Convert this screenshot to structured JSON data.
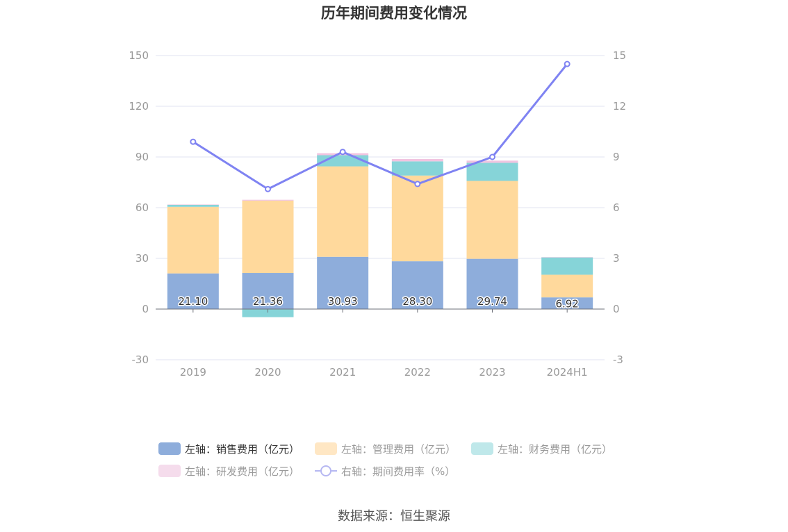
{
  "chart_data": {
    "type": "bar",
    "title": "历年期间费用变化情况",
    "categories": [
      "2019",
      "2020",
      "2021",
      "2022",
      "2023",
      "2024H1"
    ],
    "y_left": {
      "ticks": [
        -30,
        0,
        30,
        60,
        90,
        120,
        150
      ],
      "range": [
        -30,
        150
      ]
    },
    "y_right": {
      "ticks": [
        -3,
        0,
        3,
        6,
        9,
        12,
        15
      ],
      "range": [
        -3,
        15
      ]
    },
    "grid": true,
    "legend_position": "bottom",
    "series": [
      {
        "name": "左轴：销售费用（亿元）",
        "axis": "left",
        "kind": "bar",
        "values": [
          21.1,
          21.36,
          30.93,
          28.3,
          29.74,
          6.92
        ],
        "labels": [
          "21.10",
          "21.36",
          "30.93",
          "28.30",
          "29.74",
          "6.92"
        ],
        "color": "#8eaddb",
        "legend_color": "#8eaddb"
      },
      {
        "name": "左轴：管理费用（亿元）",
        "axis": "left",
        "kind": "bar",
        "values": [
          39.4,
          42.8,
          53.5,
          50.7,
          46.1,
          13.4
        ],
        "color": "#ffd99c",
        "legend_color": "#ffe7c4"
      },
      {
        "name": "左轴：财务费用（亿元）",
        "axis": "left",
        "kind": "bar",
        "values": [
          1.2,
          -4.8,
          6.6,
          8.4,
          10.7,
          10.3
        ],
        "color": "#86d4d8",
        "legend_color": "#bfe8ea"
      },
      {
        "name": "左轴：研发费用（亿元）",
        "axis": "left",
        "kind": "bar",
        "values": [
          0.2,
          0.5,
          1.2,
          1.4,
          1.3,
          0.1
        ],
        "color": "#f1c4e0",
        "legend_color": "#f5dcec"
      },
      {
        "name": "右轴：期间费用率（%）",
        "axis": "right",
        "kind": "line",
        "values": [
          9.9,
          7.1,
          9.3,
          7.4,
          9.0,
          14.5
        ],
        "color": "#7f83f2"
      }
    ]
  },
  "source": "数据来源：恒生聚源"
}
